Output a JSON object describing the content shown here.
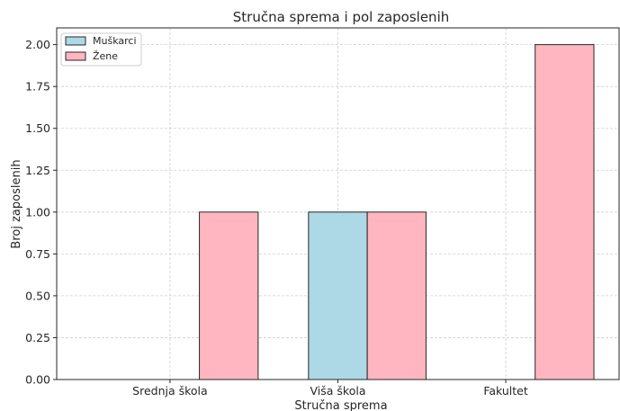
{
  "chart_data": {
    "type": "bar",
    "title": "Stručna sprema i pol zaposlenih",
    "xlabel": "Stručna sprema",
    "ylabel": "Broj zaposlenih",
    "categories": [
      "Srednja škola",
      "Viša škola",
      "Fakultet"
    ],
    "series": [
      {
        "name": "Muškarci",
        "values": [
          0,
          1,
          0
        ],
        "color": "#ADD8E6"
      },
      {
        "name": "Žene",
        "values": [
          1,
          1,
          2
        ],
        "color": "#FFB6C1"
      }
    ],
    "ylim": [
      0,
      2.1
    ],
    "yticks": [
      "0.00",
      "0.25",
      "0.50",
      "0.75",
      "1.00",
      "1.25",
      "1.50",
      "1.75",
      "2.00"
    ],
    "grid": true,
    "legend_position": "top-left"
  }
}
